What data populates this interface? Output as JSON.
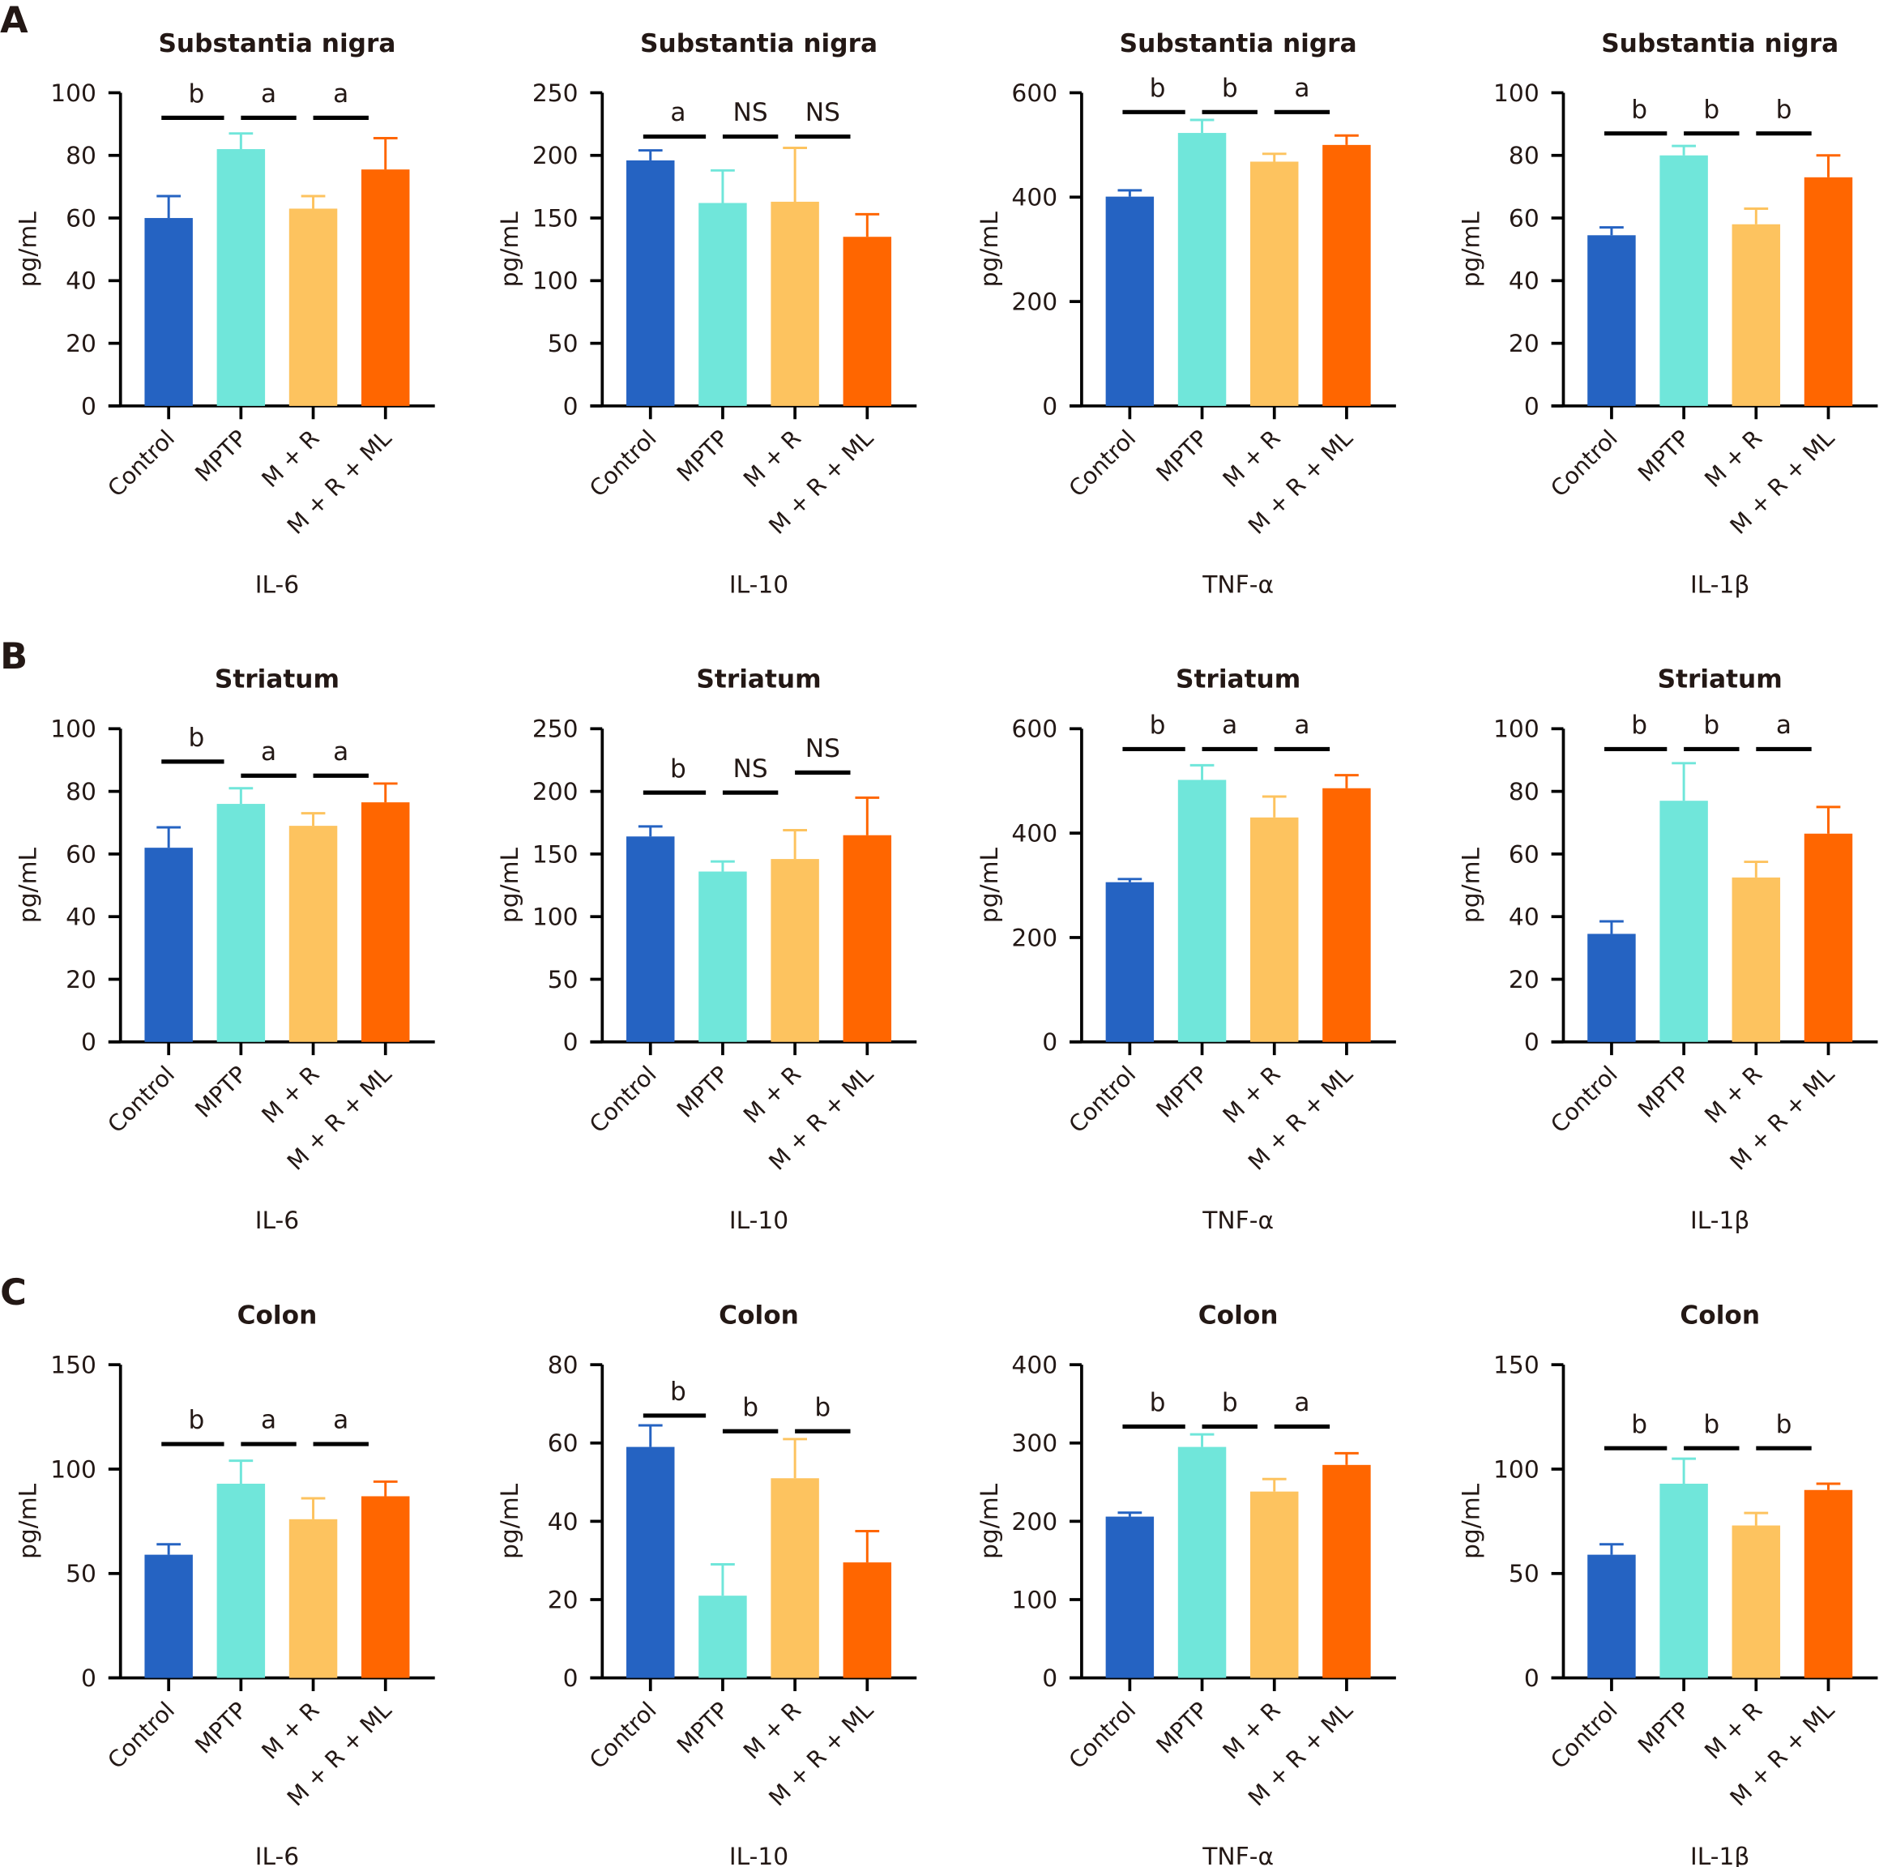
{
  "colors": [
    "#2563c2",
    "#70e6da",
    "#fdc35f",
    "#ff6600"
  ],
  "panel_labels": [
    "A",
    "B",
    "C"
  ],
  "chart_data": [
    {
      "type": "bar",
      "panel": "A",
      "title": "Substantia nigra",
      "xlabel": "IL-6",
      "ylabel": "pg/mL",
      "categories": [
        "Control",
        "MPTP",
        "M + R",
        "M + R + ML"
      ],
      "values": [
        60,
        82,
        63,
        75.5
      ],
      "errors": [
        7,
        5,
        4,
        10
      ],
      "ylim": [
        0,
        100
      ],
      "ticks": [
        0,
        20,
        40,
        60,
        80,
        100
      ],
      "significance": [
        {
          "pair": [
            0,
            1
          ],
          "label": "b",
          "y": 92
        },
        {
          "pair": [
            1,
            2
          ],
          "label": "a",
          "y": 92
        },
        {
          "pair": [
            2,
            3
          ],
          "label": "a",
          "y": 92
        }
      ]
    },
    {
      "type": "bar",
      "panel": "A",
      "title": "Substantia nigra",
      "xlabel": "IL-10",
      "ylabel": "pg/mL",
      "categories": [
        "Control",
        "MPTP",
        "M + R",
        "M + R + ML"
      ],
      "values": [
        196,
        162,
        163,
        135
      ],
      "errors": [
        8,
        26,
        43,
        18
      ],
      "ylim": [
        0,
        250
      ],
      "ticks": [
        0,
        50,
        100,
        150,
        200,
        250
      ],
      "significance": [
        {
          "pair": [
            0,
            1
          ],
          "label": "a",
          "y": 215
        },
        {
          "pair": [
            1,
            2
          ],
          "label": "NS",
          "y": 215
        },
        {
          "pair": [
            2,
            3
          ],
          "label": "NS",
          "y": 215
        }
      ]
    },
    {
      "type": "bar",
      "panel": "A",
      "title": "Substantia nigra",
      "xlabel": "TNF-α",
      "ylabel": "pg/mL",
      "categories": [
        "Control",
        "MPTP",
        "M + R",
        "M + R + ML"
      ],
      "values": [
        401,
        523,
        468,
        500
      ],
      "errors": [
        12,
        25,
        15,
        18
      ],
      "ylim": [
        0,
        600
      ],
      "ticks": [
        0,
        200,
        400,
        600
      ],
      "significance": [
        {
          "pair": [
            0,
            1
          ],
          "label": "b",
          "y": 563
        },
        {
          "pair": [
            1,
            2
          ],
          "label": "b",
          "y": 563
        },
        {
          "pair": [
            2,
            3
          ],
          "label": "a",
          "y": 563
        }
      ]
    },
    {
      "type": "bar",
      "panel": "A",
      "title": "Substantia nigra",
      "xlabel": "IL-1β",
      "ylabel": "pg/mL",
      "categories": [
        "Control",
        "MPTP",
        "M + R",
        "M + R + ML"
      ],
      "values": [
        54.5,
        80,
        58,
        73
      ],
      "errors": [
        2.5,
        3,
        5,
        7
      ],
      "ylim": [
        0,
        100
      ],
      "ticks": [
        0,
        20,
        40,
        60,
        80,
        100
      ],
      "significance": [
        {
          "pair": [
            0,
            1
          ],
          "label": "b",
          "y": 87
        },
        {
          "pair": [
            1,
            2
          ],
          "label": "b",
          "y": 87
        },
        {
          "pair": [
            2,
            3
          ],
          "label": "b",
          "y": 87
        }
      ]
    },
    {
      "type": "bar",
      "panel": "B",
      "title": "Striatum",
      "xlabel": "IL-6",
      "ylabel": "pg/mL",
      "categories": [
        "Control",
        "MPTP",
        "M + R",
        "M + R + ML"
      ],
      "values": [
        62,
        76,
        69,
        76.5
      ],
      "errors": [
        6.5,
        5,
        4,
        6
      ],
      "ylim": [
        0,
        100
      ],
      "ticks": [
        0,
        20,
        40,
        60,
        80,
        100
      ],
      "significance": [
        {
          "pair": [
            0,
            1
          ],
          "label": "b",
          "y": 89.5
        },
        {
          "pair": [
            1,
            2
          ],
          "label": "a",
          "y": 85
        },
        {
          "pair": [
            2,
            3
          ],
          "label": "a",
          "y": 85
        }
      ]
    },
    {
      "type": "bar",
      "panel": "B",
      "title": "Striatum",
      "xlabel": "IL-10",
      "ylabel": "pg/mL",
      "categories": [
        "Control",
        "MPTP",
        "M + R",
        "M + R + ML"
      ],
      "values": [
        164,
        136,
        146,
        165
      ],
      "errors": [
        8,
        8,
        23,
        30
      ],
      "ylim": [
        0,
        250
      ],
      "ticks": [
        0,
        50,
        100,
        150,
        200,
        250
      ],
      "significance": [
        {
          "pair": [
            0,
            1
          ],
          "label": "b",
          "y": 199
        },
        {
          "pair": [
            1,
            2
          ],
          "label": "NS",
          "y": 199
        },
        {
          "pair": [
            2,
            3
          ],
          "label": "NS",
          "y": 215
        }
      ]
    },
    {
      "type": "bar",
      "panel": "B",
      "title": "Striatum",
      "xlabel": "TNF-α",
      "ylabel": "pg/mL",
      "categories": [
        "Control",
        "MPTP",
        "M + R",
        "M + R + ML"
      ],
      "values": [
        306,
        502,
        430,
        486
      ],
      "errors": [
        6,
        28,
        40,
        25
      ],
      "ylim": [
        0,
        600
      ],
      "ticks": [
        0,
        200,
        400,
        600
      ],
      "significance": [
        {
          "pair": [
            0,
            1
          ],
          "label": "b",
          "y": 561
        },
        {
          "pair": [
            1,
            2
          ],
          "label": "a",
          "y": 561
        },
        {
          "pair": [
            2,
            3
          ],
          "label": "a",
          "y": 561
        }
      ]
    },
    {
      "type": "bar",
      "panel": "B",
      "title": "Striatum",
      "xlabel": "IL-1β",
      "ylabel": "pg/mL",
      "categories": [
        "Control",
        "MPTP",
        "M + R",
        "M + R + ML"
      ],
      "values": [
        34.5,
        77,
        52.5,
        66.5
      ],
      "errors": [
        4,
        12,
        5,
        8.5
      ],
      "ylim": [
        0,
        100
      ],
      "ticks": [
        0,
        20,
        40,
        60,
        80,
        100
      ],
      "significance": [
        {
          "pair": [
            0,
            1
          ],
          "label": "b",
          "y": 93.5
        },
        {
          "pair": [
            1,
            2
          ],
          "label": "b",
          "y": 93.5
        },
        {
          "pair": [
            2,
            3
          ],
          "label": "a",
          "y": 93.5
        }
      ]
    },
    {
      "type": "bar",
      "panel": "C",
      "title": "Colon",
      "xlabel": "IL-6",
      "ylabel": "pg/mL",
      "categories": [
        "Control",
        "MPTP",
        "M + R",
        "M + R + ML"
      ],
      "values": [
        59,
        93,
        76,
        87
      ],
      "errors": [
        5,
        11,
        10,
        7
      ],
      "ylim": [
        0,
        150
      ],
      "ticks": [
        0,
        50,
        100,
        150
      ],
      "significance": [
        {
          "pair": [
            0,
            1
          ],
          "label": "b",
          "y": 112
        },
        {
          "pair": [
            1,
            2
          ],
          "label": "a",
          "y": 112
        },
        {
          "pair": [
            2,
            3
          ],
          "label": "a",
          "y": 112
        }
      ]
    },
    {
      "type": "bar",
      "panel": "C",
      "title": "Colon",
      "xlabel": "IL-10",
      "ylabel": "pg/mL",
      "categories": [
        "Control",
        "MPTP",
        "M + R",
        "M + R + ML"
      ],
      "values": [
        59,
        21,
        51,
        29.5
      ],
      "errors": [
        5.5,
        8,
        10,
        8
      ],
      "ylim": [
        0,
        80
      ],
      "ticks": [
        0,
        20,
        40,
        60,
        80
      ],
      "significance": [
        {
          "pair": [
            0,
            1
          ],
          "label": "b",
          "y": 67
        },
        {
          "pair": [
            1,
            2
          ],
          "label": "b",
          "y": 63
        },
        {
          "pair": [
            2,
            3
          ],
          "label": "b",
          "y": 63
        }
      ]
    },
    {
      "type": "bar",
      "panel": "C",
      "title": "Colon",
      "xlabel": "TNF-α",
      "ylabel": "pg/mL",
      "categories": [
        "Control",
        "MPTP",
        "M + R",
        "M + R + ML"
      ],
      "values": [
        206,
        295,
        238,
        272
      ],
      "errors": [
        5,
        16,
        16,
        15
      ],
      "ylim": [
        0,
        400
      ],
      "ticks": [
        0,
        100,
        200,
        300,
        400
      ],
      "significance": [
        {
          "pair": [
            0,
            1
          ],
          "label": "b",
          "y": 321
        },
        {
          "pair": [
            1,
            2
          ],
          "label": "b",
          "y": 321
        },
        {
          "pair": [
            2,
            3
          ],
          "label": "a",
          "y": 321
        }
      ]
    },
    {
      "type": "bar",
      "panel": "C",
      "title": "Colon",
      "xlabel": "IL-1β",
      "ylabel": "pg/mL",
      "categories": [
        "Control",
        "MPTP",
        "M + R",
        "M + R + ML"
      ],
      "values": [
        59,
        93,
        73,
        90
      ],
      "errors": [
        5,
        12,
        6,
        3
      ],
      "ylim": [
        0,
        150
      ],
      "ticks": [
        0,
        50,
        100,
        150
      ],
      "significance": [
        {
          "pair": [
            0,
            1
          ],
          "label": "b",
          "y": 110
        },
        {
          "pair": [
            1,
            2
          ],
          "label": "b",
          "y": 110
        },
        {
          "pair": [
            2,
            3
          ],
          "label": "b",
          "y": 110
        }
      ]
    }
  ]
}
